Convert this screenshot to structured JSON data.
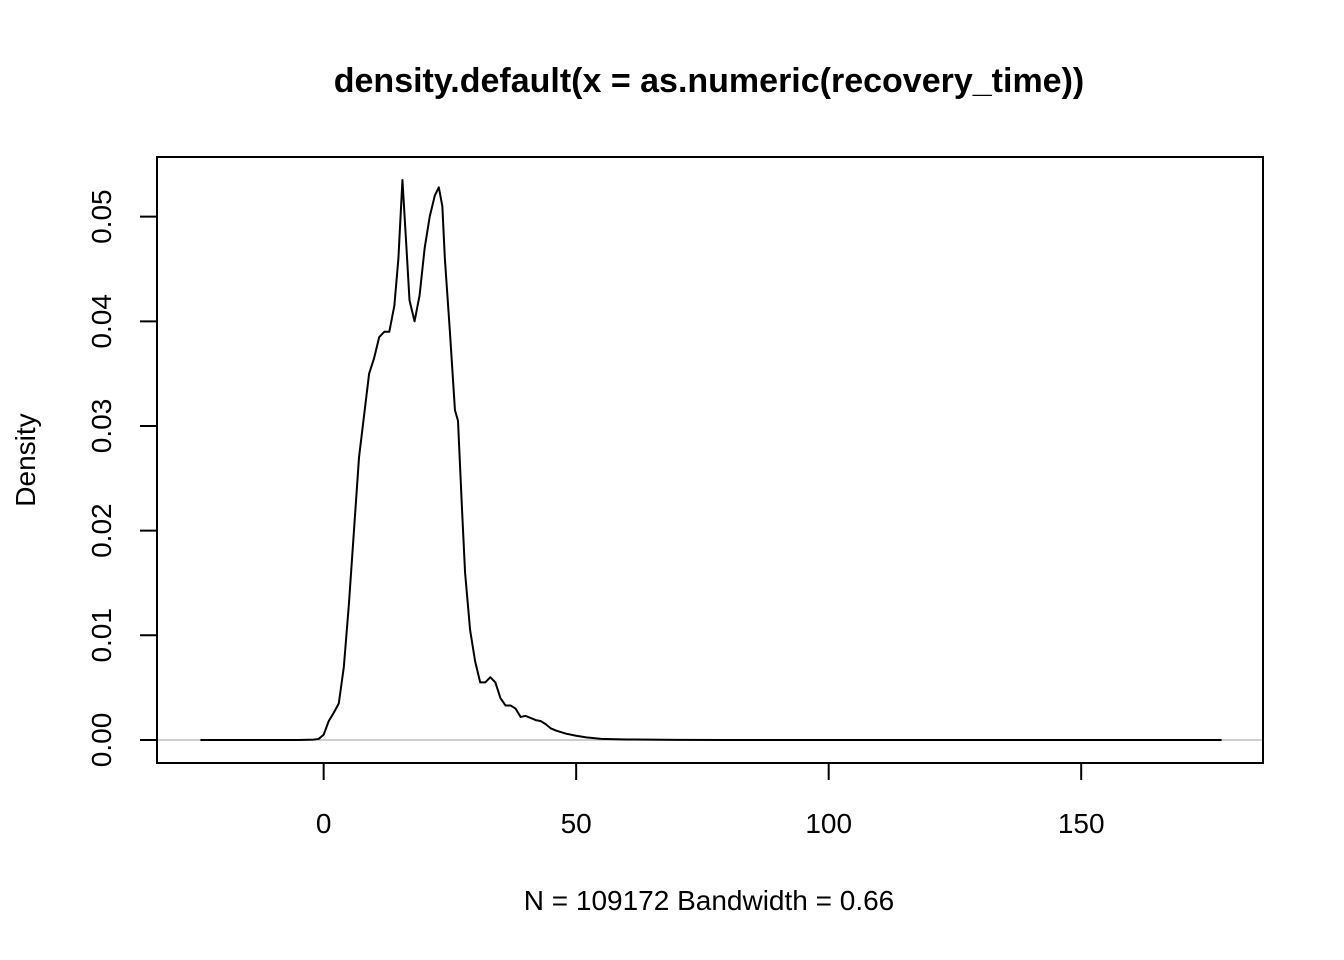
{
  "chart_data": {
    "type": "line",
    "title": "density.default(x = as.numeric(recovery_time))",
    "xlabel": "N = 109172   Bandwidth = 0.66",
    "ylabel": "Density",
    "xlim": [
      -33,
      186
    ],
    "ylim": [
      -0.0022,
      0.0557
    ],
    "x_ticks": [
      0,
      50,
      100,
      150
    ],
    "x_tick_labels": [
      "0",
      "50",
      "100",
      "150"
    ],
    "y_ticks": [
      0,
      0.01,
      0.02,
      0.03,
      0.04,
      0.05
    ],
    "y_tick_labels": [
      "0.00",
      "0.01",
      "0.02",
      "0.03",
      "0.04",
      "0.05"
    ],
    "grid": false,
    "zero_line": true,
    "series": [
      {
        "color": "#000000",
        "x": [
          -24.4,
          -10,
          -5,
          -2,
          -1,
          0,
          1,
          2,
          3,
          4,
          5,
          6,
          7,
          8,
          9,
          10,
          11,
          12,
          13,
          14,
          14.8,
          15.6,
          16.4,
          17,
          18,
          19,
          20,
          21,
          22,
          22.8,
          23.5,
          24,
          25,
          26,
          26.6,
          27.4,
          28,
          29,
          30,
          31,
          32,
          33,
          34,
          35,
          36,
          37,
          38,
          39,
          40,
          41,
          42,
          43,
          44,
          45,
          46,
          48,
          50,
          52,
          55,
          60,
          70,
          80,
          100,
          120,
          150,
          177.8
        ],
        "y": [
          0,
          0,
          0,
          3e-05,
          0.0001,
          0.0005,
          0.0018,
          0.0026,
          0.0035,
          0.007,
          0.013,
          0.02,
          0.027,
          0.031,
          0.035,
          0.0365,
          0.0385,
          0.039,
          0.039,
          0.0415,
          0.046,
          0.0535,
          0.047,
          0.042,
          0.04,
          0.0425,
          0.047,
          0.05,
          0.052,
          0.0528,
          0.051,
          0.046,
          0.039,
          0.0315,
          0.0305,
          0.022,
          0.016,
          0.0105,
          0.0075,
          0.0055,
          0.0055,
          0.006,
          0.0055,
          0.004,
          0.0033,
          0.0033,
          0.003,
          0.0022,
          0.0023,
          0.0021,
          0.0019,
          0.0018,
          0.0015,
          0.0011,
          0.0009,
          0.0006,
          0.0004,
          0.00025,
          0.0001,
          5e-05,
          1e-05,
          0,
          0,
          0,
          0,
          0
        ]
      }
    ]
  }
}
